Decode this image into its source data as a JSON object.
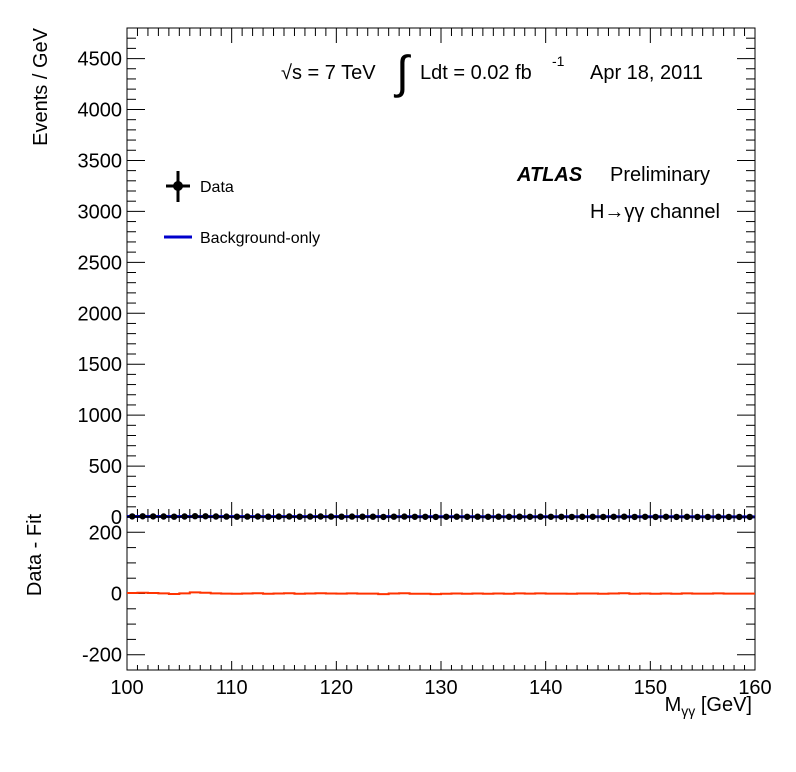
{
  "chart_data": [
    {
      "type": "scatter",
      "panel": "main",
      "xlim": [
        100,
        160
      ],
      "ylim": [
        0,
        4800
      ],
      "ylabel": "Events / GeV",
      "yticks": [
        0,
        500,
        1000,
        1500,
        2000,
        2500,
        3000,
        3500,
        4000,
        4500
      ],
      "series": [
        {
          "name": "Data",
          "x": [
            100.5,
            101.5,
            102.5,
            103.5,
            104.5,
            105.5,
            106.5,
            107.5,
            108.5,
            109.5,
            110.5,
            111.5,
            112.5,
            113.5,
            114.5,
            115.5,
            116.5,
            117.5,
            118.5,
            119.5,
            120.5,
            121.5,
            122.5,
            123.5,
            124.5,
            125.5,
            126.5,
            127.5,
            128.5,
            129.5,
            130.5,
            131.5,
            132.5,
            133.5,
            134.5,
            135.5,
            136.5,
            137.5,
            138.5,
            139.5,
            140.5,
            141.5,
            142.5,
            143.5,
            144.5,
            145.5,
            146.5,
            147.5,
            148.5,
            149.5,
            150.5,
            151.5,
            152.5,
            153.5,
            154.5,
            155.5,
            156.5,
            157.5,
            158.5,
            159.5
          ],
          "values": [
            6,
            7,
            6,
            5,
            3,
            5,
            8,
            7,
            5,
            4,
            3,
            4,
            5,
            3,
            4,
            5,
            3,
            4,
            5,
            4,
            3,
            4,
            3,
            3,
            1,
            3,
            4,
            2,
            2,
            1,
            2,
            3,
            2,
            3,
            2,
            3,
            2,
            3,
            2,
            3,
            2,
            2,
            1,
            2,
            2,
            1,
            2,
            3,
            1,
            2,
            1,
            2,
            1,
            2,
            1,
            1,
            2,
            1,
            1,
            1
          ]
        },
        {
          "name": "Background-only",
          "type": "line",
          "x": [
            100,
            110,
            120,
            130,
            140,
            150,
            160
          ],
          "values": [
            4.5,
            4.0,
            3.5,
            3.0,
            2.5,
            2.0,
            1.6
          ]
        }
      ],
      "legend": [
        "Data",
        "Background-only"
      ],
      "legend_position": "top-left",
      "colors": {
        "data": "#000000",
        "background": "#0000cc"
      }
    },
    {
      "type": "line",
      "panel": "ratio",
      "xlim": [
        100,
        160
      ],
      "ylim": [
        -250,
        250
      ],
      "xlabel": "M",
      "xlabel_sub": "γγ",
      "xlabel_unit": " [GeV]",
      "ylabel": "Data - Fit",
      "xticks": [
        100,
        110,
        120,
        130,
        140,
        150,
        160
      ],
      "yticks": [
        -200,
        0,
        200
      ],
      "series": [
        {
          "name": "Data - Fit",
          "x": [
            100.5,
            101.5,
            102.5,
            103.5,
            104.5,
            105.5,
            106.5,
            107.5,
            108.5,
            109.5,
            110.5,
            111.5,
            112.5,
            113.5,
            114.5,
            115.5,
            116.5,
            117.5,
            118.5,
            119.5,
            120.5,
            121.5,
            122.5,
            123.5,
            124.5,
            125.5,
            126.5,
            127.5,
            128.5,
            129.5,
            130.5,
            131.5,
            132.5,
            133.5,
            134.5,
            135.5,
            136.5,
            137.5,
            138.5,
            139.5,
            140.5,
            141.5,
            142.5,
            143.5,
            144.5,
            145.5,
            146.5,
            147.5,
            148.5,
            149.5,
            150.5,
            151.5,
            152.5,
            153.5,
            154.5,
            155.5,
            156.5,
            157.5,
            158.5,
            159.5
          ],
          "values": [
            1.5,
            2.5,
            1.5,
            0.5,
            -1.5,
            0.5,
            3.5,
            2.5,
            0.5,
            -0.5,
            -1.0,
            0.0,
            1.0,
            -1.0,
            0.0,
            1.0,
            -1.0,
            0.0,
            1.0,
            0.0,
            -0.5,
            0.5,
            -0.5,
            -0.5,
            -2.0,
            0.0,
            1.0,
            -1.0,
            -1.0,
            -2.0,
            -1.0,
            0.0,
            -1.0,
            0.0,
            -1.0,
            0.0,
            -1.0,
            0.5,
            -0.5,
            0.5,
            -0.5,
            -0.5,
            -1.0,
            0.0,
            0.0,
            -1.0,
            0.0,
            1.0,
            -1.0,
            0.0,
            -1.0,
            0.0,
            -1.0,
            0.5,
            -0.5,
            -0.5,
            0.5,
            -0.5,
            -0.5,
            -0.5
          ]
        }
      ],
      "colors": {
        "line": "#ff3300"
      }
    }
  ],
  "annotations": {
    "energy": "√s = 7 TeV",
    "integral_sign": "∫",
    "lumi": "Ldt = 0.02 fb",
    "lumi_exp": "-1",
    "date": "Apr 18, 2011",
    "experiment": "ATLAS",
    "status": "Preliminary",
    "channel": "H→γγ channel"
  }
}
